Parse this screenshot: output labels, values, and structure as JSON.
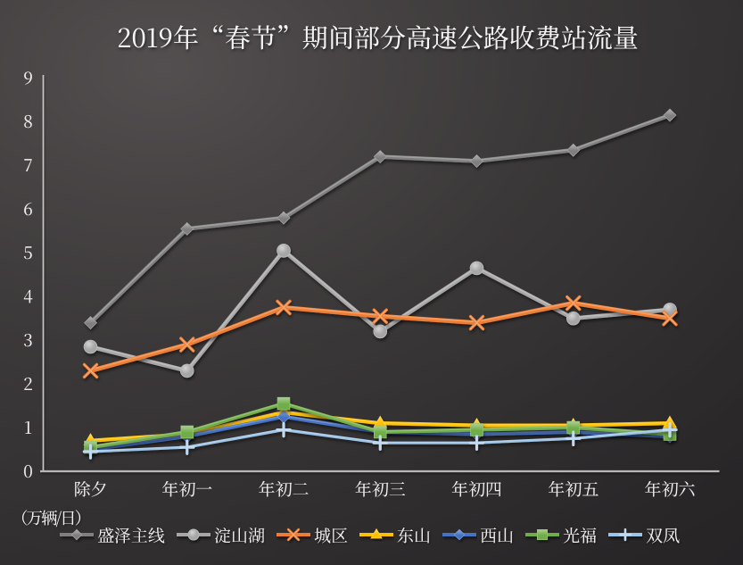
{
  "chart_data": {
    "type": "line",
    "title": "2019年“春节”期间部分高速公路收费站流量",
    "unit_label": "（万辆/日）",
    "categories": [
      "除夕",
      "年初一",
      "年初二",
      "年初三",
      "年初四",
      "年初五",
      "年初六"
    ],
    "y_ticks": [
      0,
      1,
      2,
      3,
      4,
      5,
      6,
      7,
      8,
      9
    ],
    "ylim": [
      0,
      9
    ],
    "grid": false,
    "legend_position": "bottom",
    "background": {
      "style": "dark-gradient",
      "light": "#4c4849",
      "dark": "#262425"
    },
    "series": [
      {
        "name": "盛泽主线",
        "color": "#7f7f7f",
        "marker": "diamond",
        "values": [
          3.4,
          5.55,
          5.8,
          7.2,
          7.1,
          7.35,
          8.15
        ]
      },
      {
        "name": "淀山湖",
        "color": "#a6a6a6",
        "marker": "circle",
        "values": [
          2.85,
          2.3,
          5.05,
          3.2,
          4.65,
          3.5,
          3.7
        ]
      },
      {
        "name": "城区",
        "color": "#ed7d31",
        "marker": "x",
        "values": [
          2.3,
          2.9,
          3.75,
          3.55,
          3.4,
          3.85,
          3.5
        ]
      },
      {
        "name": "东山",
        "color": "#ffc000",
        "marker": "triangle",
        "values": [
          0.7,
          0.85,
          1.35,
          1.1,
          1.05,
          1.05,
          1.1
        ]
      },
      {
        "name": "西山",
        "color": "#4472c4",
        "marker": "diamond",
        "values": [
          0.5,
          0.8,
          1.25,
          0.9,
          0.85,
          0.9,
          0.8
        ]
      },
      {
        "name": "光福",
        "color": "#70ad47",
        "marker": "square",
        "values": [
          0.55,
          0.9,
          1.55,
          0.9,
          0.95,
          1.0,
          0.85
        ]
      },
      {
        "name": "双凤",
        "color": "#9dc3e6",
        "marker": "plus",
        "values": [
          0.45,
          0.55,
          0.95,
          0.65,
          0.65,
          0.75,
          0.95
        ]
      }
    ]
  }
}
